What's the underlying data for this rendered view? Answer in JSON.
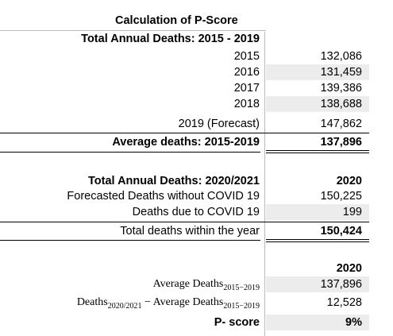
{
  "title": "Calculation of P-Score",
  "section1": {
    "heading": "Total Annual Deaths: 2015 - 2019",
    "rows": [
      [
        "2015",
        "132,086"
      ],
      [
        "2016",
        "131,459"
      ],
      [
        "2017",
        "139,386"
      ],
      [
        "2018",
        "138,688"
      ],
      [
        "2019 (Forecast)",
        "147,862"
      ]
    ],
    "total": [
      "Average deaths: 2015-2019",
      "137,896"
    ]
  },
  "section2": {
    "heading": "Total Annual Deaths: 2020/2021",
    "year": "2020",
    "rows": [
      [
        "Forecasted Deaths without COVID 19",
        "150,225"
      ],
      [
        "Deaths due to COVID 19",
        "199"
      ]
    ],
    "total": [
      "Total deaths within the year",
      "150,424"
    ]
  },
  "section3": {
    "year": "2020",
    "average": {
      "text": "Average Deaths",
      "sub": "2015−2019",
      "value": "137,896"
    },
    "excess": {
      "text1": "Deaths",
      "sub1": "2020/2021",
      "text2": " − Average Deaths",
      "sub2": "2015−2019",
      "value": "12,528"
    },
    "pscore": [
      "P- score",
      "9%"
    ]
  }
}
